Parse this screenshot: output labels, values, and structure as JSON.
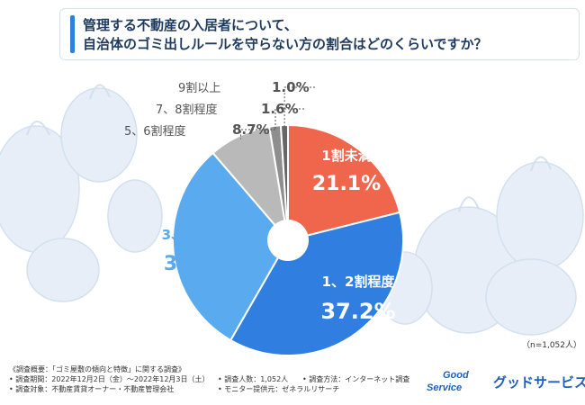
{
  "title": {
    "line1": "管理する不動産の入居者について、",
    "line2": "自治体のゴミ出しルールを守らない方の割合はどのくらいですか？"
  },
  "chart_data": {
    "type": "pie",
    "donut": true,
    "unit": "%",
    "n": "（n=1,052人）",
    "slices": [
      {
        "label": "1割未満",
        "value": 21.1,
        "value_label": "21.1%",
        "color": "#f0664c"
      },
      {
        "label": "1、2割程度",
        "value": 37.2,
        "value_label": "37.2%",
        "color": "#2f7ee0"
      },
      {
        "label": "3、4割程度",
        "value": 30.4,
        "value_label": "30.4%",
        "color": "#5aaaf0"
      },
      {
        "label": "5、6割程度",
        "value": 8.7,
        "value_label": "8.7%",
        "color": "#b9b9b9"
      },
      {
        "label": "7、8割程度",
        "value": 1.6,
        "value_label": "1.6%",
        "color": "#8e8e8e"
      },
      {
        "label": "9割以上",
        "value": 1.0,
        "value_label": "1.0%",
        "color": "#666666"
      }
    ]
  },
  "survey": {
    "row1": "《調査概要：「ゴミ屋敷の傾向と特徴」に関する調査》",
    "row2a": "• 調査期間：2022年12月2日（金）〜2022年12月3日（土）",
    "row2b": "• 調査人数：1,052人",
    "row2c": "• 調査方法：インターネット調査",
    "row3a": "• 調査対象：不動産賃貸オーナー・不動産管理会社",
    "row3b": "• モニター提供元：ゼネラルリサーチ"
  },
  "logo": {
    "mark_line1": "Good",
    "mark_line2": "Service",
    "name": "グッドサービス"
  },
  "colors": {
    "bag": "#e7eef7",
    "bag_edge": "#d3e0ee",
    "title_accent": "#2f7fe0",
    "label_white": "#ffffff",
    "label_blue": "#5aaaf0",
    "label_gray": "#555555"
  }
}
